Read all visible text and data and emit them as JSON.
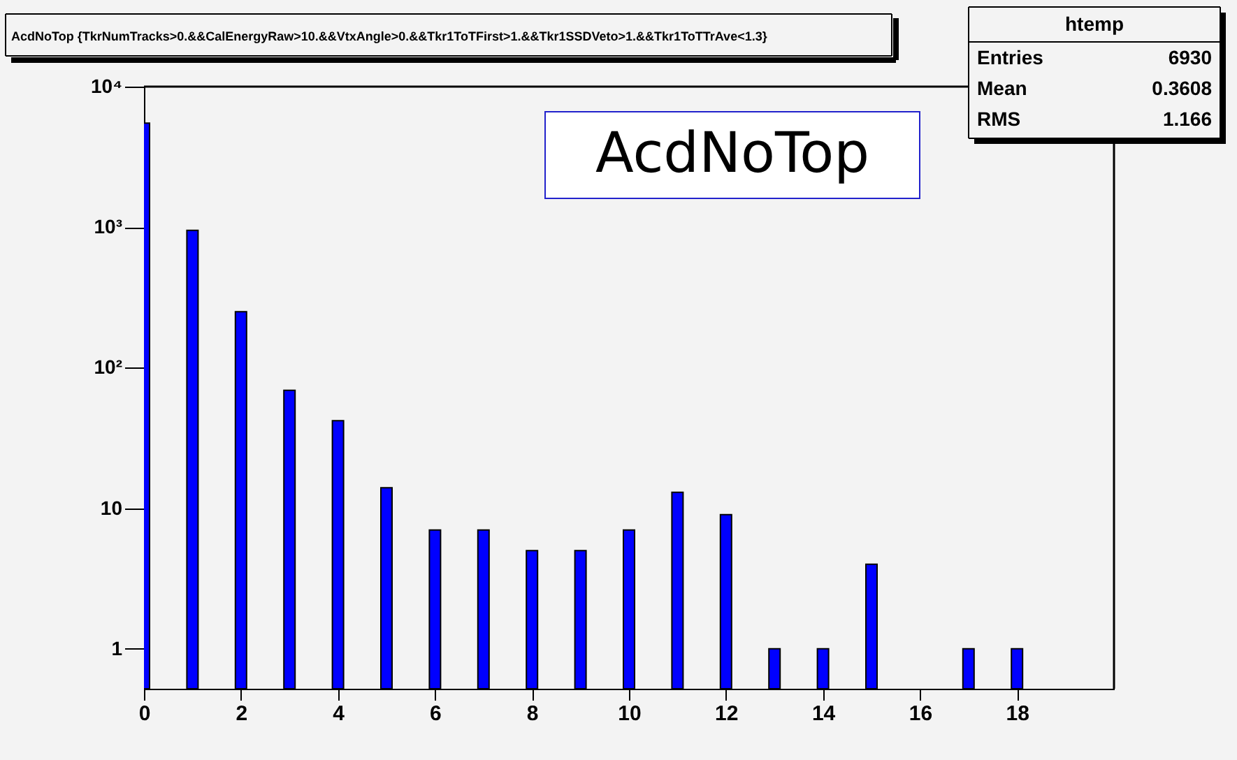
{
  "chart_data": {
    "type": "bar",
    "title": "AcdNoTop {TkrNumTracks>0.&&CalEnergyRaw>10.&&VtxAngle>0.&&Tkr1ToTFirst>1.&&Tkr1SSDVeto>1.&&Tkr1ToTTrAve<1.3}",
    "x": [
      0,
      1,
      2,
      3,
      4,
      5,
      6,
      7,
      8,
      9,
      10,
      11,
      12,
      13,
      14,
      15,
      16,
      17,
      18
    ],
    "series": [
      {
        "color": "#0000ff",
        "values": [
          5500,
          950,
          250,
          69,
          42,
          14,
          7,
          7,
          5,
          5,
          7,
          13,
          9,
          1,
          1,
          4,
          null,
          1,
          1
        ]
      }
    ],
    "log": "y",
    "xlim": [
      0,
      20
    ],
    "xticks": [
      0,
      2,
      4,
      6,
      8,
      10,
      12,
      14,
      16,
      18
    ],
    "ylim": [
      0.52,
      10000
    ],
    "yticks": [
      1,
      10,
      {
        "value": 100,
        "label": "10²"
      },
      {
        "value": 1000,
        "label": "10³"
      },
      {
        "value": 10000,
        "label": "10⁴"
      }
    ],
    "grid": false,
    "legend": false,
    "annotations": [
      "AcdNoTop",
      "htemp",
      "Entries 6930",
      "Mean 0.3608",
      "RMS 1.166"
    ]
  }
}
